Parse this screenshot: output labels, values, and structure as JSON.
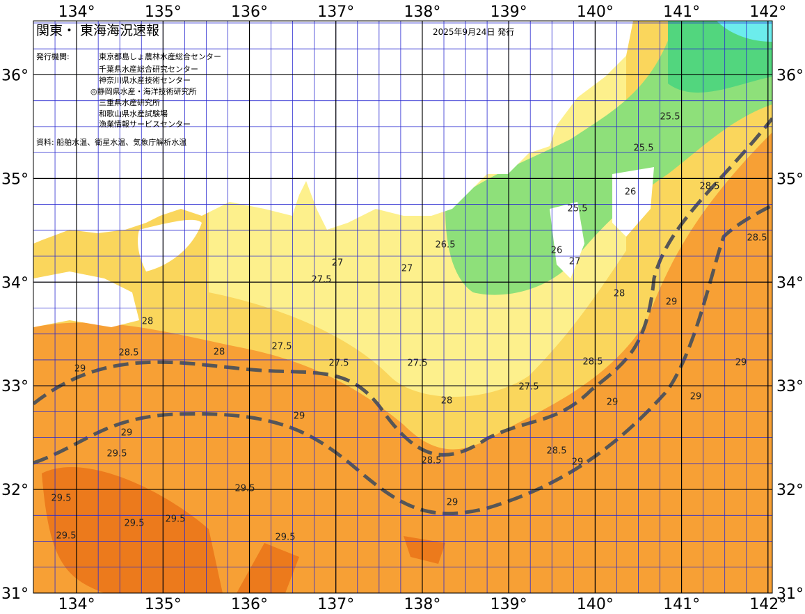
{
  "header": {
    "title": "関東・ 東海海況速報",
    "issued": "2025年9月24日 発行",
    "agencies_label": "発行機関:",
    "agencies": [
      "東京都島しょ農林水産総合センター",
      "千葉県水産総合研究センター",
      "神奈川県水産技術センター",
      "◎静岡県水産・海洋技術研究所",
      "三重県水産研究所",
      "和歌山県水産試験場",
      "漁業情報サービスセンター"
    ],
    "source": "資料: 船舶水温、衛星水温、気象庁解析水温"
  },
  "map": {
    "lon_range": [
      133.5,
      142.05
    ],
    "lat_range": [
      31,
      36.52
    ],
    "longitude_ticks": [
      {
        "value": 134,
        "label": "134°"
      },
      {
        "value": 135,
        "label": "135°"
      },
      {
        "value": 136,
        "label": "136°"
      },
      {
        "value": 137,
        "label": "137°"
      },
      {
        "value": 138,
        "label": "138°"
      },
      {
        "value": 139,
        "label": "139°"
      },
      {
        "value": 140,
        "label": "140°"
      },
      {
        "value": 141,
        "label": "141°"
      },
      {
        "value": 142,
        "label": "142°"
      }
    ],
    "latitude_ticks": [
      {
        "value": 36,
        "label": "36°"
      },
      {
        "value": 35,
        "label": "35°"
      },
      {
        "value": 34,
        "label": "34°"
      },
      {
        "value": 33,
        "label": "33°"
      },
      {
        "value": 32,
        "label": "32°"
      },
      {
        "value": 31,
        "label": "31°"
      }
    ],
    "contour_labels": [
      29,
      28.5,
      28,
      29,
      29.5,
      29.5,
      29.5,
      29.5,
      29.5,
      29.5,
      29.5,
      28,
      27.5,
      27.5,
      27.5,
      27,
      27,
      27.5,
      26.5,
      26,
      27,
      25.5,
      25.5,
      26,
      25.5,
      28,
      28.5,
      29,
      29,
      28.5,
      28.5,
      29,
      29,
      29,
      28,
      27.5,
      29,
      29,
      28.5,
      28.5
    ]
  }
}
